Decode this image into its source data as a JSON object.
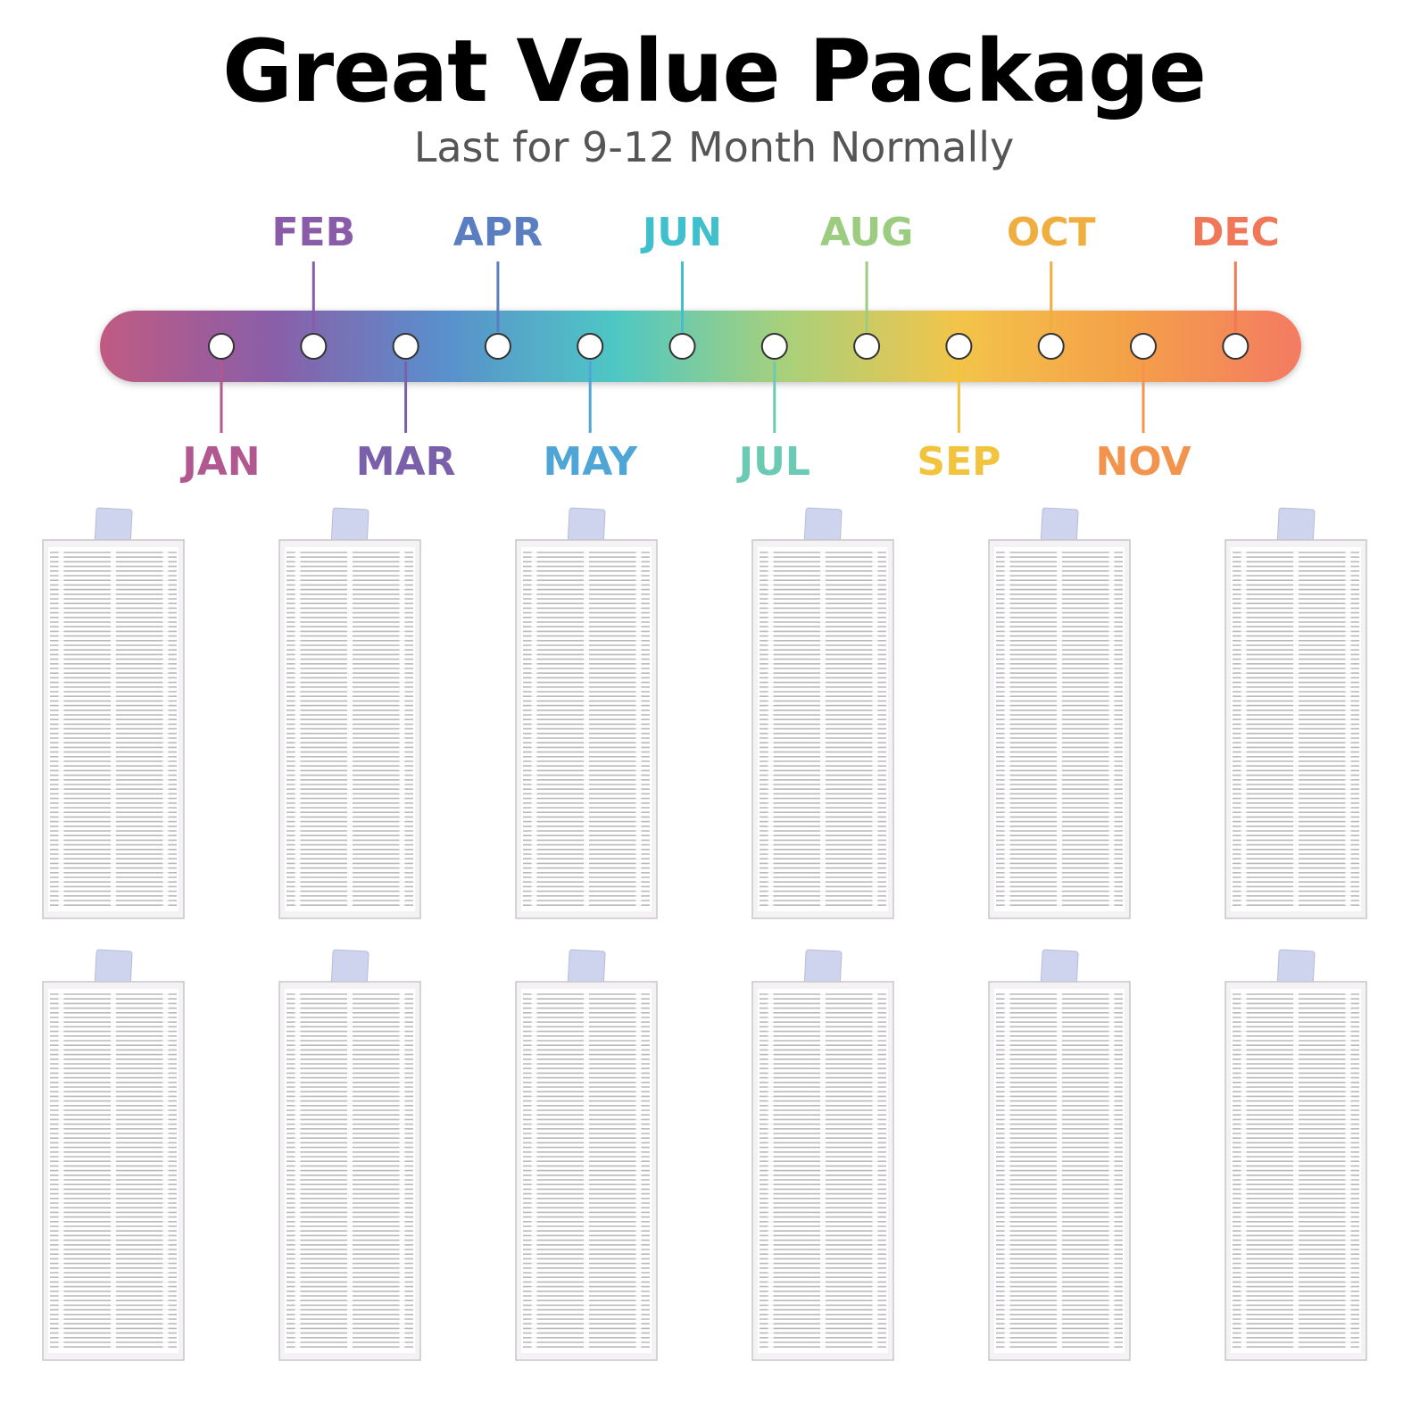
{
  "header": {
    "title": "Great Value Package",
    "subtitle": "Last for 9-12 Month Normally"
  },
  "timeline": {
    "gradient_colors": [
      "#c05a82",
      "#8a5ea8",
      "#5a8fcc",
      "#4ec7c4",
      "#a9d07a",
      "#f3c44a",
      "#f4a04a",
      "#f47a62"
    ],
    "months": [
      {
        "label": "JAN",
        "color": "#b0588f",
        "position": "below"
      },
      {
        "label": "FEB",
        "color": "#8a5ba8",
        "position": "above"
      },
      {
        "label": "MAR",
        "color": "#7a60aa",
        "position": "below"
      },
      {
        "label": "APR",
        "color": "#5a7ec0",
        "position": "above"
      },
      {
        "label": "MAY",
        "color": "#4fa6d6",
        "position": "below"
      },
      {
        "label": "JUN",
        "color": "#3fc0cc",
        "position": "above"
      },
      {
        "label": "JUL",
        "color": "#6cc9b4",
        "position": "below"
      },
      {
        "label": "AUG",
        "color": "#9ccc80",
        "position": "above"
      },
      {
        "label": "SEP",
        "color": "#f2c33c",
        "position": "below"
      },
      {
        "label": "OCT",
        "color": "#f0ae40",
        "position": "above"
      },
      {
        "label": "NOV",
        "color": "#f2944e",
        "position": "below"
      },
      {
        "label": "DEC",
        "color": "#f07858",
        "position": "above"
      }
    ]
  },
  "filters": {
    "rows": 2,
    "columns": 6,
    "frame_color": "#f4f2f4",
    "pleat_color": "#b9b9b9",
    "tab_color": "#cfd4ee"
  }
}
